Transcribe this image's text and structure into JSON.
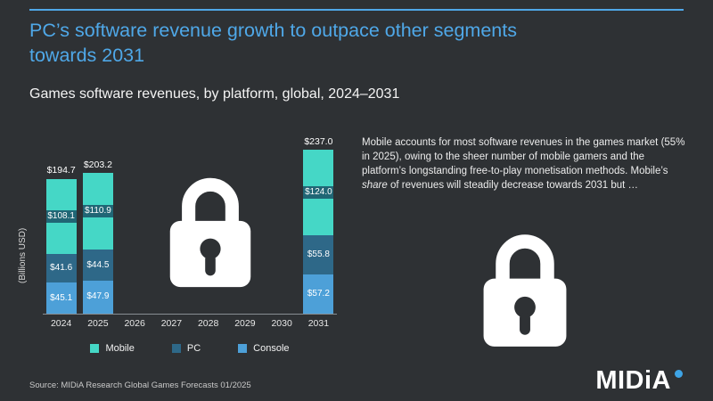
{
  "page": {
    "title": "PC’s software revenue growth to outpace other segments towards 2031",
    "subtitle": "Games software revenues, by platform, global, 2024–2031",
    "source": "Source: MIDiA Research Global Games Forecasts 01/2025",
    "accent_color": "#4fa8e8"
  },
  "commentary": {
    "text_before": "Mobile accounts for most software revenues in the games market (55% in 2025), owing to the sheer number of mobile gamers and the platform’s longstanding free-to-play monetisation methods. Mobile’s ",
    "text_italic": "share",
    "text_after": " of revenues will steadily decrease towards 2031 but …"
  },
  "logo": {
    "text": "MIDiA",
    "dot_color": "#3ea4e6"
  },
  "chart_data": {
    "type": "bar",
    "stacked": true,
    "title": "Games software revenues, by platform, global, 2024–2031",
    "xlabel": "",
    "ylabel": "(Billions USD)",
    "value_prefix": "$",
    "categories": [
      "2024",
      "2025",
      "2026",
      "2027",
      "2028",
      "2029",
      "2030",
      "2031"
    ],
    "series": [
      {
        "name": "Console",
        "color": "#4da0d8",
        "values": [
          45.1,
          47.9,
          null,
          null,
          null,
          null,
          null,
          57.2
        ]
      },
      {
        "name": "PC",
        "color": "#2e6888",
        "values": [
          41.6,
          44.5,
          null,
          null,
          null,
          null,
          null,
          55.8
        ]
      },
      {
        "name": "Mobile",
        "color": "#45d7c6",
        "label_style": "band",
        "values": [
          108.1,
          110.9,
          null,
          null,
          null,
          null,
          null,
          124.0
        ]
      }
    ],
    "totals": [
      194.7,
      203.2,
      null,
      null,
      null,
      null,
      null,
      237.0
    ],
    "legend": [
      {
        "label": "Mobile",
        "color": "#45d7c6"
      },
      {
        "label": "PC",
        "color": "#2e6888"
      },
      {
        "label": "Console",
        "color": "#4da0d8"
      }
    ],
    "locked_categories": [
      "2026",
      "2027",
      "2028",
      "2029",
      "2030"
    ],
    "legend_position": "bottom",
    "grid": false
  }
}
